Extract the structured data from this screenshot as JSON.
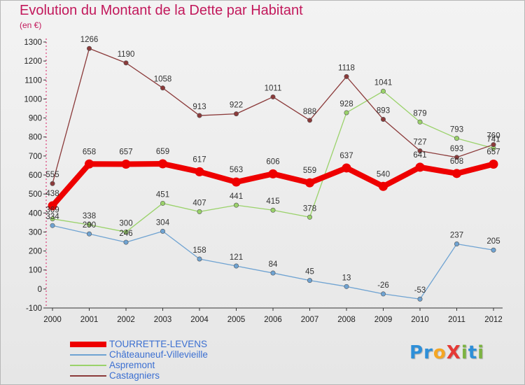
{
  "title": "Evolution du Montant de la Dette par Habitant",
  "subtitle": "(en €)",
  "logo": {
    "text": "ProXiti",
    "letters": [
      {
        "ch": "P",
        "color": "#2e8fd8"
      },
      {
        "ch": "r",
        "color": "#2e8fd8"
      },
      {
        "ch": "o",
        "color": "#f5a623"
      },
      {
        "ch": "X",
        "color": "#e53935"
      },
      {
        "ch": "i",
        "color": "#7cb342"
      },
      {
        "ch": "t",
        "color": "#2e8fd8"
      },
      {
        "ch": "i",
        "color": "#7cb342"
      }
    ]
  },
  "chart_data": {
    "type": "line",
    "title": "Evolution du Montant de la Dette par Habitant",
    "subtitle": "(en €)",
    "x": [
      "2000",
      "2001",
      "2002",
      "2003",
      "2004",
      "2005",
      "2006",
      "2007",
      "2008",
      "2009",
      "2010",
      "2011",
      "2012"
    ],
    "ylim": [
      -100,
      1300
    ],
    "yticks": [
      "1300",
      "1200",
      "1100",
      "1000",
      "900",
      "800",
      "700",
      "600",
      "500",
      "400",
      "300",
      "200",
      "100",
      "0",
      "-100"
    ],
    "ytick_values": [
      1300,
      1200,
      1100,
      1000,
      900,
      800,
      700,
      600,
      500,
      400,
      300,
      200,
      100,
      0,
      -100
    ],
    "grid": false,
    "legend_position": "bottom-left",
    "series": [
      {
        "name": "TOURRETTE-LEVENS",
        "color": "#ee0000",
        "emphasis": true,
        "values": [
          438,
          658,
          657,
          659,
          617,
          563,
          606,
          559,
          637,
          540,
          641,
          608,
          657
        ],
        "labels": [
          "438",
          "658",
          "657",
          "659",
          "617",
          "563",
          "606",
          "559",
          "637",
          "540",
          "641",
          "608",
          "657"
        ]
      },
      {
        "name": "Châteauneuf-Villevieille",
        "color": "#6fa3d2",
        "values": [
          334,
          290,
          246,
          304,
          158,
          121,
          84,
          45,
          13,
          -26,
          -53,
          237,
          205
        ],
        "labels": [
          "334",
          "290",
          "246",
          "304",
          "158",
          "121",
          "84",
          "45",
          "13",
          "-26",
          "-53",
          "237",
          "205"
        ]
      },
      {
        "name": "Aspremont",
        "color": "#9ad26a",
        "values": [
          369,
          338,
          300,
          451,
          407,
          441,
          415,
          378,
          928,
          1041,
          879,
          793,
          741
        ],
        "labels": [
          "369",
          "338",
          "300",
          "451",
          "407",
          "441",
          "415",
          "378",
          "928",
          "1041",
          "879",
          "793",
          "741"
        ]
      },
      {
        "name": "Castagniers",
        "color": "#8b3a3a",
        "values": [
          555,
          1266,
          1190,
          1058,
          913,
          922,
          1011,
          888,
          1118,
          893,
          727,
          693,
          760
        ],
        "labels": [
          "555",
          "1266",
          "1190",
          "1058",
          "913",
          "922",
          "1011",
          "888",
          "1118",
          "893",
          "727",
          "693",
          "760"
        ]
      }
    ]
  }
}
